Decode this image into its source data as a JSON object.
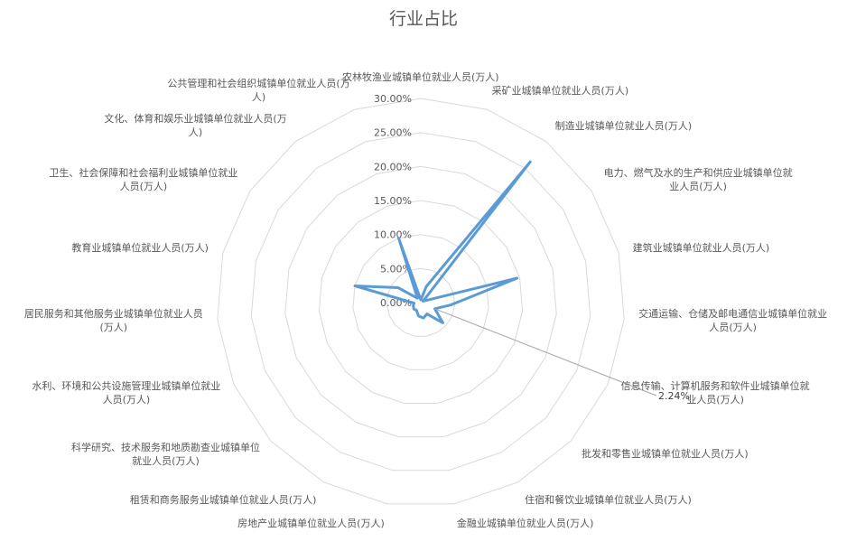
{
  "chart_data": {
    "type": "radar",
    "title": "行业占比",
    "categories": [
      "农林牧渔业城镇单位就业人员(万人)",
      "采矿业城镇单位就业人员(万人)",
      "制造业城镇单位就业人员(万人)",
      "电力、燃气及水的生产和供应业城镇单位就业人员(万人)",
      "建筑业城镇单位就业人员(万人)",
      "交通运输、仓储及邮电通信业城镇单位就业人员(万人)",
      "信息传输、计算机服务和软件业城镇单位就业人员(万人)",
      "批发和零售业城镇单位就业人员(万人)",
      "住宿和餐饮业城镇单位就业人员(万人)",
      "金融业城镇单位就业人员(万人)",
      "房地产业城镇单位就业人员(万人)",
      "租赁和商务服务业城镇单位就业人员(万人)",
      "科学研究、技术服务和地质勘查业城镇单位就业人员(万人)",
      "水利、环境和公共设施管理业城镇单位就业人员(万人)",
      "居民服务和其他服务业城镇单位就业人员(万人)",
      "教育业城镇单位就业人员(万人)",
      "卫生、社会保障和社会福利业城镇单位就业人员(万人)",
      "文化、体育和娱乐业城镇单位就业人员(万人)",
      "公共管理和社会组织城镇单位就业人员(万人)"
    ],
    "category_lines": [
      [
        "农林牧渔业城镇单位就业人员(万人)"
      ],
      [
        "采矿业城镇单位就业人员(万人)"
      ],
      [
        "制造业城镇单位就业人员(万人)"
      ],
      [
        "电力、燃气及水的生产和供应业城镇单位就",
        "业人员(万人)"
      ],
      [
        "建筑业城镇单位就业人员(万人)"
      ],
      [
        "交通运输、仓储及邮电通信业城镇单位就业",
        "人员(万人)"
      ],
      [
        "信息传输、计算机服务和软件业城镇单位就",
        "业人员(万人)"
      ],
      [
        "批发和零售业城镇单位就业人员(万人)"
      ],
      [
        "住宿和餐饮业城镇单位就业人员(万人)"
      ],
      [
        "金融业城镇单位就业人员(万人)"
      ],
      [
        "房地产业城镇单位就业人员(万人)"
      ],
      [
        "租赁和商务服务业城镇单位就业人员(万人)"
      ],
      [
        "科学研究、技术服务和地质勘查业城镇单位",
        "就业人员(万人)"
      ],
      [
        "水利、环境和公共设施管理业城镇单位就业",
        "人员(万人)"
      ],
      [
        "居民服务和其他服务业城镇单位就业人员",
        "(万人)"
      ],
      [
        "教育业城镇单位就业人员(万人)"
      ],
      [
        "卫生、社会保障和社会福利业城镇单位就业",
        "人员(万人)"
      ],
      [
        "文化、体育和娱乐业城镇单位就业人员(万",
        "人)"
      ],
      [
        "公共管理和社会组织城镇单位就业人员(万",
        "人)"
      ]
    ],
    "series": [
      {
        "values": [
          0.004,
          0.025,
          0.262,
          0.004,
          0.146,
          0.044,
          0.0224,
          0.044,
          0.019,
          0.023,
          0.02,
          0.013,
          0.014,
          0.012,
          0.01,
          0.1,
          0.04,
          0.008,
          0.1
        ]
      }
    ],
    "rlim": [
      0,
      0.3
    ],
    "ticks": [
      "0.00%",
      "5.00%",
      "10.00%",
      "15.00%",
      "20.00%",
      "25.00%",
      "30.00%"
    ],
    "data_label": {
      "index": 6,
      "text": "2.24%"
    },
    "grid": true,
    "legend": "none",
    "colors": {
      "series": "#5b9bd5",
      "grid": "#d9d9d9",
      "text": "#595959"
    }
  }
}
